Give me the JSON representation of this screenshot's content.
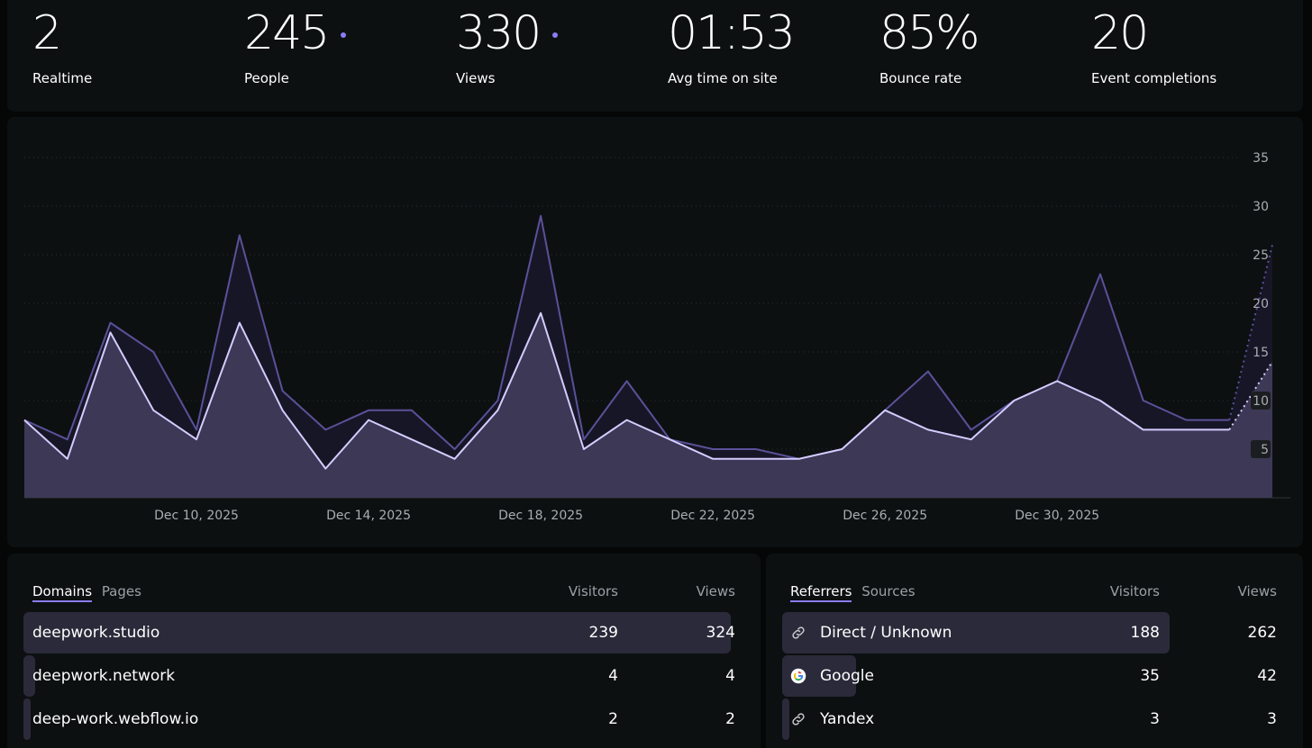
{
  "stats": [
    {
      "value": "2",
      "label": "Realtime",
      "dot": false
    },
    {
      "value": "245",
      "label": "People",
      "dot": true
    },
    {
      "value": "330",
      "label": "Views",
      "dot": true
    },
    {
      "value": "01:53",
      "label": "Avg time on site",
      "dot": false
    },
    {
      "value": "85%",
      "label": "Bounce rate",
      "dot": false
    },
    {
      "value": "20",
      "label": "Event completions",
      "dot": false
    }
  ],
  "chart_data": {
    "type": "area",
    "title": "",
    "x": [
      "Dec 6",
      "Dec 7",
      "Dec 8",
      "Dec 9",
      "Dec 10",
      "Dec 11",
      "Dec 12",
      "Dec 13",
      "Dec 14",
      "Dec 15",
      "Dec 16",
      "Dec 17",
      "Dec 18",
      "Dec 19",
      "Dec 20",
      "Dec 21",
      "Dec 22",
      "Dec 23",
      "Dec 24",
      "Dec 25",
      "Dec 26",
      "Dec 27",
      "Dec 28",
      "Dec 29",
      "Dec 30",
      "Dec 31",
      "Jan 1",
      "Jan 2",
      "Jan 3",
      "Jan 4"
    ],
    "x_tick_labels": [
      "Dec 10, 2025",
      "Dec 14, 2025",
      "Dec 18, 2025",
      "Dec 22, 2025",
      "Dec 26, 2025",
      "Dec 30, 2025"
    ],
    "y_ticks": [
      5,
      10,
      15,
      20,
      25,
      30,
      35
    ],
    "ylim": [
      0,
      35
    ],
    "series": [
      {
        "name": "Views",
        "values": [
          8,
          6,
          18,
          15,
          7,
          27,
          11,
          7,
          9,
          9,
          5,
          10,
          29,
          6,
          12,
          6,
          5,
          5,
          4,
          5,
          9,
          13,
          7,
          10,
          12,
          23,
          10,
          8,
          8,
          26
        ],
        "partial_last": true,
        "color": "#5a5199"
      },
      {
        "name": "People",
        "values": [
          8,
          4,
          17,
          9,
          6,
          18,
          9,
          3,
          8,
          6,
          4,
          9,
          19,
          5,
          8,
          6,
          4,
          4,
          4,
          5,
          9,
          7,
          6,
          10,
          12,
          10,
          7,
          7,
          7,
          14
        ],
        "partial_last": true,
        "color": "#d4ccff"
      }
    ]
  },
  "domains": {
    "tabs": [
      "Domains",
      "Pages"
    ],
    "active_tab": "Domains",
    "col_visitors": "Visitors",
    "col_views": "Views",
    "rows": [
      {
        "name": "deepwork.studio",
        "visitors": "239",
        "views": "324",
        "share": 1.0
      },
      {
        "name": "deepwork.network",
        "visitors": "4",
        "views": "4",
        "share": 0.017
      },
      {
        "name": "deep-work.webflow.io",
        "visitors": "2",
        "views": "2",
        "share": 0.008
      }
    ]
  },
  "referrers": {
    "tabs": [
      "Referrers",
      "Sources"
    ],
    "active_tab": "Referrers",
    "col_visitors": "Visitors",
    "col_views": "Views",
    "rows": [
      {
        "name": "Direct / Unknown",
        "visitors": "188",
        "views": "262",
        "icon": "link-icon",
        "share": 1.0
      },
      {
        "name": "Google",
        "visitors": "35",
        "views": "42",
        "icon": "google-icon",
        "share": 0.19
      },
      {
        "name": "Yandex",
        "visitors": "3",
        "views": "3",
        "icon": "link-icon",
        "share": 0.016
      }
    ]
  },
  "colors": {
    "accent": "#8b7cf6",
    "views_fill": "#171626",
    "people_fill": "#3c3855",
    "bar": "#2b2a3a"
  }
}
